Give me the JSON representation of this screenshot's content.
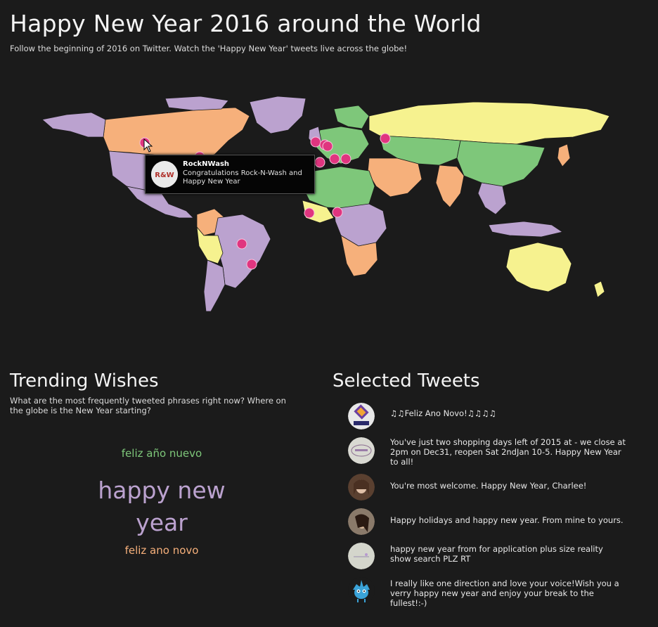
{
  "header": {
    "title": "Happy New Year 2016 around the World",
    "subtitle": "Follow the beginning of 2016 on Twitter. Watch the 'Happy New Year' tweets live across the globe!"
  },
  "colors": {
    "background": "#1b1b1b",
    "purple": "#bba2cf",
    "orange": "#f6b07b",
    "green": "#7ec77a",
    "yellow": "#f6f28f",
    "marker": "#e0357f"
  },
  "tooltip": {
    "name": "RockNWash",
    "text": "Congratulations Rock-N-Wash and Happy New Year",
    "avatar_icon": "rocknwash-logo"
  },
  "trending": {
    "title": "Trending Wishes",
    "description": "What are the most frequently tweeted phrases right now? Where on the globe is the New Year starting?",
    "phrases": [
      {
        "text": "feliz año nuevo",
        "color": "#7ec77a"
      },
      {
        "text": "happy new year",
        "color": "#bba2cf"
      },
      {
        "text": "feliz ano novo",
        "color": "#f6b07b"
      }
    ]
  },
  "selected": {
    "title": "Selected Tweets",
    "tweets": [
      {
        "text": "♫♫Feliz Ano Novo!♫♫♫♫",
        "avatar_icon": "agency-logo-avatar"
      },
      {
        "text": "You've just two shopping days left of 2015 at - we close at 2pm on Dec31, reopen Sat 2ndJan 10-5. Happy New Year to all!",
        "avatar_icon": "shop-logo-avatar"
      },
      {
        "text": "You're most welcome. Happy New Year, Charlee!",
        "avatar_icon": "woman-portrait-avatar"
      },
      {
        "text": "Happy holidays and happy new year. From mine to yours.",
        "avatar_icon": "woman-photo-avatar"
      },
      {
        "text": "happy new year from for application plus size reality show search PLZ RT",
        "avatar_icon": "sketch-avatar"
      },
      {
        "text": "I really like one direction and love your voice!Wish you a verry happy new year and enjoy your break to the fullest!:-)",
        "avatar_icon": "blue-bird-avatar"
      }
    ]
  }
}
